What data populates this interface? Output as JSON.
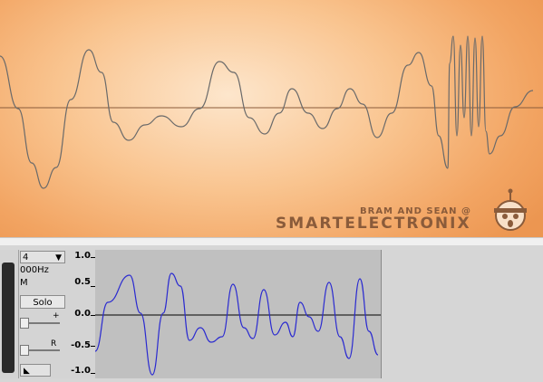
{
  "banner": {
    "brand_small": "BRAM AND SEAN @",
    "brand_large": "SMARTELECTRONIX",
    "logo_icon": "smartelectronix-logo-icon",
    "background_color": "#f5b074",
    "wave_color": "#6a6a6a"
  },
  "track": {
    "menu_label": "4",
    "rate": "000Hz",
    "format": "M",
    "solo_label": "Solo",
    "gain_plus": "+",
    "pan_right": "R",
    "collapse_icon": "collapse-triangle-icon"
  },
  "ruler": {
    "labels": [
      "1.0",
      "0.5",
      "0.0",
      "-0.5",
      "-1.0"
    ]
  },
  "waveform": {
    "color": "#2a2ad0",
    "background": "#c0c0c0"
  }
}
